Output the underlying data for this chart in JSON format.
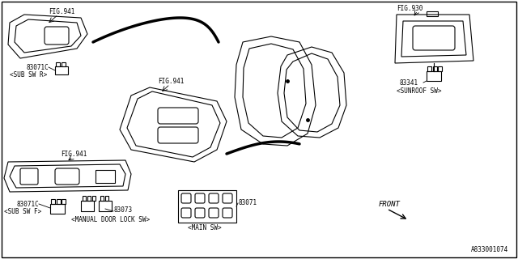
{
  "bg_color": "#ffffff",
  "border_color": "#000000",
  "line_color": "#000000",
  "fig_width": 6.4,
  "fig_height": 3.2,
  "dpi": 100,
  "diagram_number": "A833001074",
  "labels": {
    "fig941_top": "FIG.941",
    "fig941_mid": "FIG.941",
    "fig941_bot": "FIG.941",
    "fig930": "FIG.930",
    "part_83071C_r": "83071C",
    "label_sub_sw_r": "<SUB SW R>",
    "part_83071C_f": "83071C",
    "label_sub_sw_f": "<SUB SW F>",
    "part_83071": "83071",
    "label_main_sw": "<MAIN SW>",
    "part_83073": "83073",
    "label_manual": "<MANUAL DOOR LOCK SW>",
    "part_83341": "83341",
    "label_sunroof": "<SUNROOF SW>",
    "front": "FRONT"
  }
}
